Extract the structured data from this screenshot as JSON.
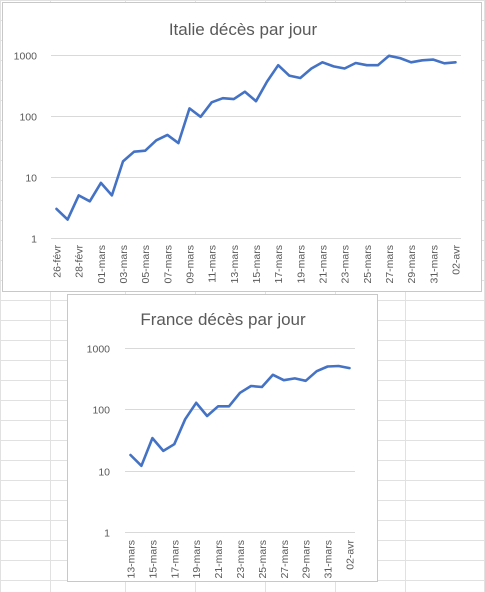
{
  "colors": {
    "series": "#4472c4",
    "grid": "#d9d9d9",
    "text": "#595959",
    "sheet_grid": "#e1e1e1"
  },
  "chart_data": [
    {
      "id": "italy",
      "type": "line",
      "title": "Italie décès par jour",
      "y_scale": "log",
      "ylim": [
        1,
        1000
      ],
      "y_ticks": [
        1,
        10,
        100,
        1000
      ],
      "y_tick_labels": [
        "1",
        "10",
        "100",
        "1000"
      ],
      "grid": true,
      "legend": "none",
      "categories": [
        "26-févr",
        "27-févr",
        "28-févr",
        "29-févr",
        "01-mars",
        "02-mars",
        "03-mars",
        "04-mars",
        "05-mars",
        "06-mars",
        "07-mars",
        "08-mars",
        "09-mars",
        "10-mars",
        "11-mars",
        "12-mars",
        "13-mars",
        "14-mars",
        "15-mars",
        "16-mars",
        "17-mars",
        "18-mars",
        "19-mars",
        "20-mars",
        "21-mars",
        "22-mars",
        "23-mars",
        "24-mars",
        "25-mars",
        "26-mars",
        "27-mars",
        "28-mars",
        "29-mars",
        "30-mars",
        "31-mars",
        "01-avr",
        "02-avr"
      ],
      "x_tick_labels": [
        "26-févr",
        "28-févr",
        "01-mars",
        "03-mars",
        "05-mars",
        "07-mars",
        "09-mars",
        "11-mars",
        "13-mars",
        "15-mars",
        "17-mars",
        "19-mars",
        "21-mars",
        "23-mars",
        "25-mars",
        "27-mars",
        "29-mars",
        "31-mars",
        "02-avr"
      ],
      "series": [
        {
          "values": [
            3,
            2,
            5,
            4,
            8,
            5,
            18,
            26,
            27,
            40,
            49,
            36,
            133,
            97,
            168,
            196,
            189,
            250,
            175,
            368,
            680,
            460,
            420,
            600,
            760,
            650,
            600,
            740,
            680,
            680,
            970,
            890,
            760,
            820,
            840,
            730,
            760
          ]
        }
      ]
    },
    {
      "id": "france",
      "type": "line",
      "title": "France décès par jour",
      "y_scale": "log",
      "ylim": [
        1,
        1000
      ],
      "y_ticks": [
        1,
        10,
        100,
        1000
      ],
      "y_tick_labels": [
        "1",
        "10",
        "100",
        "1000"
      ],
      "grid": true,
      "legend": "none",
      "categories": [
        "13-mars",
        "14-mars",
        "15-mars",
        "16-mars",
        "17-mars",
        "18-mars",
        "19-mars",
        "20-mars",
        "21-mars",
        "22-mars",
        "23-mars",
        "24-mars",
        "25-mars",
        "26-mars",
        "27-mars",
        "28-mars",
        "29-mars",
        "30-mars",
        "31-mars",
        "01-avr",
        "02-avr"
      ],
      "x_tick_labels": [
        "13-mars",
        "15-mars",
        "17-mars",
        "19-mars",
        "21-mars",
        "23-mars",
        "25-mars",
        "27-mars",
        "29-mars",
        "31-mars",
        "02-avr"
      ],
      "series": [
        {
          "values": [
            18,
            12,
            34,
            21,
            27,
            69,
            128,
            78,
            112,
            112,
            186,
            240,
            231,
            365,
            299,
            319,
            292,
            418,
            499,
            509,
            471
          ]
        }
      ]
    }
  ]
}
